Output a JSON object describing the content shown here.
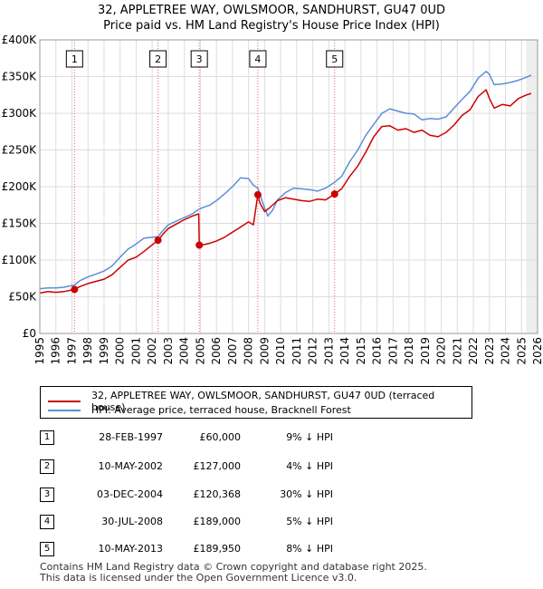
{
  "title_line1": "32, APPLETREE WAY, OWLSMOOR, SANDHURST, GU47 0UD",
  "title_line2": "Price paid vs. HM Land Registry's House Price Index (HPI)",
  "chart_data": {
    "type": "line",
    "xlim": [
      1995,
      2026
    ],
    "ylim": [
      0,
      400000
    ],
    "x_ticks": [
      "1995",
      "1996",
      "1997",
      "1998",
      "1999",
      "2000",
      "2001",
      "2002",
      "2003",
      "2004",
      "2005",
      "2006",
      "2007",
      "2008",
      "2009",
      "2010",
      "2011",
      "2012",
      "2013",
      "2014",
      "2015",
      "2016",
      "2017",
      "2018",
      "2019",
      "2020",
      "2021",
      "2022",
      "2023",
      "2024",
      "2025",
      "2026"
    ],
    "y_ticks": [
      {
        "value": 0,
        "label": "£0"
      },
      {
        "value": 50000,
        "label": "£50K"
      },
      {
        "value": 100000,
        "label": "£100K"
      },
      {
        "value": 150000,
        "label": "£150K"
      },
      {
        "value": 200000,
        "label": "£200K"
      },
      {
        "value": 250000,
        "label": "£250K"
      },
      {
        "value": 300000,
        "label": "£300K"
      },
      {
        "value": 350000,
        "label": "£350K"
      },
      {
        "value": 400000,
        "label": "£400K"
      }
    ],
    "grid": true,
    "forecast_start": 2025.3,
    "series": [
      {
        "name": "32, APPLETREE WAY, OWLSMOOR, SANDHURST, GU47 0UD (terraced house)",
        "color": "#cc0000",
        "x": [
          1995,
          1995.5,
          1996,
          1996.5,
          1997.16,
          1997.5,
          1998,
          1998.5,
          1999,
          1999.5,
          2000,
          2000.5,
          2001,
          2001.5,
          2002.36,
          2002.7,
          2003,
          2003.5,
          2004,
          2004.5,
          2004.9,
          2004.93,
          2005.2,
          2005.6,
          2006,
          2006.5,
          2007,
          2007.5,
          2008,
          2008.3,
          2008.58,
          2008.7,
          2009,
          2009.3,
          2009.8,
          2010.3,
          2010.8,
          2011.3,
          2011.8,
          2012.3,
          2012.8,
          2013.36,
          2013.8,
          2014.3,
          2014.8,
          2015.3,
          2015.8,
          2016.3,
          2016.8,
          2017.3,
          2017.8,
          2018.3,
          2018.8,
          2019.3,
          2019.8,
          2020.3,
          2020.8,
          2021.3,
          2021.8,
          2022.3,
          2022.8,
          2023.0,
          2023.3,
          2023.8,
          2024.3,
          2024.8,
          2025.3,
          2025.6
        ],
        "y": [
          55000,
          57000,
          56000,
          57000,
          60000,
          64000,
          68000,
          71000,
          74000,
          80000,
          90000,
          100000,
          104000,
          112000,
          127000,
          136000,
          143000,
          149000,
          155000,
          160000,
          163000,
          120368,
          121000,
          123000,
          126000,
          131000,
          138000,
          145000,
          152000,
          148000,
          189000,
          178000,
          166000,
          171000,
          181000,
          185000,
          183000,
          181000,
          180000,
          183000,
          182000,
          189950,
          197000,
          214000,
          228000,
          247000,
          268000,
          282000,
          283000,
          277000,
          279000,
          274000,
          277000,
          270000,
          268000,
          274000,
          284000,
          297000,
          305000,
          323000,
          332000,
          320000,
          307000,
          312000,
          310000,
          320000,
          325000,
          327000
        ]
      },
      {
        "name": "HPI: Average price, terraced house, Bracknell Forest",
        "color": "#5b8fd6",
        "x": [
          1995,
          1995.5,
          1996,
          1996.5,
          1997.16,
          1997.5,
          1998,
          1998.5,
          1999,
          1999.5,
          2000,
          2000.5,
          2001,
          2001.5,
          2002.36,
          2002.7,
          2003,
          2003.5,
          2004,
          2004.5,
          2004.9,
          2005.2,
          2005.6,
          2006,
          2006.5,
          2007,
          2007.5,
          2008,
          2008.3,
          2008.58,
          2008.9,
          2009.2,
          2009.5,
          2009.8,
          2010.3,
          2010.8,
          2011.3,
          2011.8,
          2012.3,
          2012.8,
          2013.36,
          2013.8,
          2014.3,
          2014.8,
          2015.3,
          2015.8,
          2016.3,
          2016.8,
          2017.3,
          2017.8,
          2018.3,
          2018.8,
          2019.3,
          2019.8,
          2020.3,
          2020.8,
          2021.3,
          2021.8,
          2022.3,
          2022.8,
          2023.0,
          2023.3,
          2023.8,
          2024.3,
          2024.8,
          2025.3,
          2025.6
        ],
        "y": [
          61000,
          62000,
          62000,
          63000,
          66000,
          72000,
          77000,
          81000,
          85000,
          92000,
          104000,
          115000,
          122000,
          130000,
          132000,
          141000,
          148000,
          153000,
          158000,
          163000,
          169000,
          172000,
          175000,
          181000,
          190000,
          200000,
          212000,
          211000,
          202000,
          198000,
          177000,
          160000,
          168000,
          182000,
          192000,
          198000,
          197000,
          196000,
          194000,
          198000,
          206000,
          214000,
          234000,
          250000,
          270000,
          285000,
          300000,
          306000,
          303000,
          300000,
          299000,
          291000,
          293000,
          292000,
          295000,
          307000,
          319000,
          330000,
          348000,
          357000,
          353000,
          339000,
          340000,
          342000,
          345000,
          349000,
          352000
        ]
      }
    ],
    "sales": [
      {
        "label": "1",
        "x": 1997.16,
        "y": 60000
      },
      {
        "label": "2",
        "x": 2002.36,
        "y": 127000
      },
      {
        "label": "3",
        "x": 2004.93,
        "y": 120368
      },
      {
        "label": "4",
        "x": 2008.58,
        "y": 189000
      },
      {
        "label": "5",
        "x": 2013.36,
        "y": 189950
      }
    ]
  },
  "legend": {
    "property": "32, APPLETREE WAY, OWLSMOOR, SANDHURST, GU47 0UD (terraced house)",
    "hpi": "HPI: Average price, terraced house, Bracknell Forest",
    "property_color": "#cc0000",
    "hpi_color": "#5b8fd6"
  },
  "sales_table": [
    {
      "num": "1",
      "date": "28-FEB-1997",
      "price": "£60,000",
      "hpi": "9% ↓ HPI"
    },
    {
      "num": "2",
      "date": "10-MAY-2002",
      "price": "£127,000",
      "hpi": "4% ↓ HPI"
    },
    {
      "num": "3",
      "date": "03-DEC-2004",
      "price": "£120,368",
      "hpi": "30% ↓ HPI"
    },
    {
      "num": "4",
      "date": "30-JUL-2008",
      "price": "£189,000",
      "hpi": "5% ↓ HPI"
    },
    {
      "num": "5",
      "date": "10-MAY-2013",
      "price": "£189,950",
      "hpi": "8% ↓ HPI"
    }
  ],
  "footer": {
    "line1": "Contains HM Land Registry data © Crown copyright and database right 2025.",
    "line2": "This data is licensed under the Open Government Licence v3.0."
  }
}
